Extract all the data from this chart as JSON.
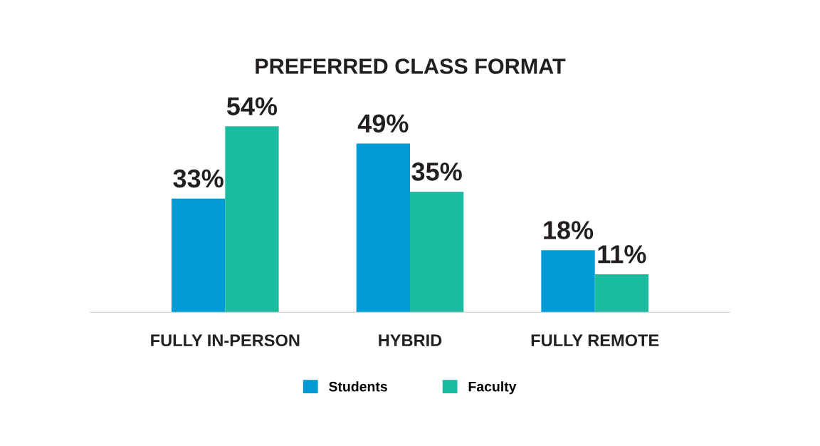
{
  "chart_data": {
    "type": "bar",
    "title": "PREFERRED CLASS FORMAT",
    "categories": [
      "FULLY IN-PERSON",
      "HYBRID",
      "FULLY REMOTE"
    ],
    "series": [
      {
        "name": "Students",
        "color": "#009ad4",
        "values": [
          33,
          49,
          18
        ],
        "value_labels": [
          "33%",
          "49%",
          "18%"
        ]
      },
      {
        "name": "Faculty",
        "color": "#1bbba0",
        "values": [
          54,
          35,
          11
        ],
        "value_labels": [
          "54%",
          "35%",
          "11%"
        ]
      }
    ],
    "legend": "bottom",
    "grid": false
  }
}
